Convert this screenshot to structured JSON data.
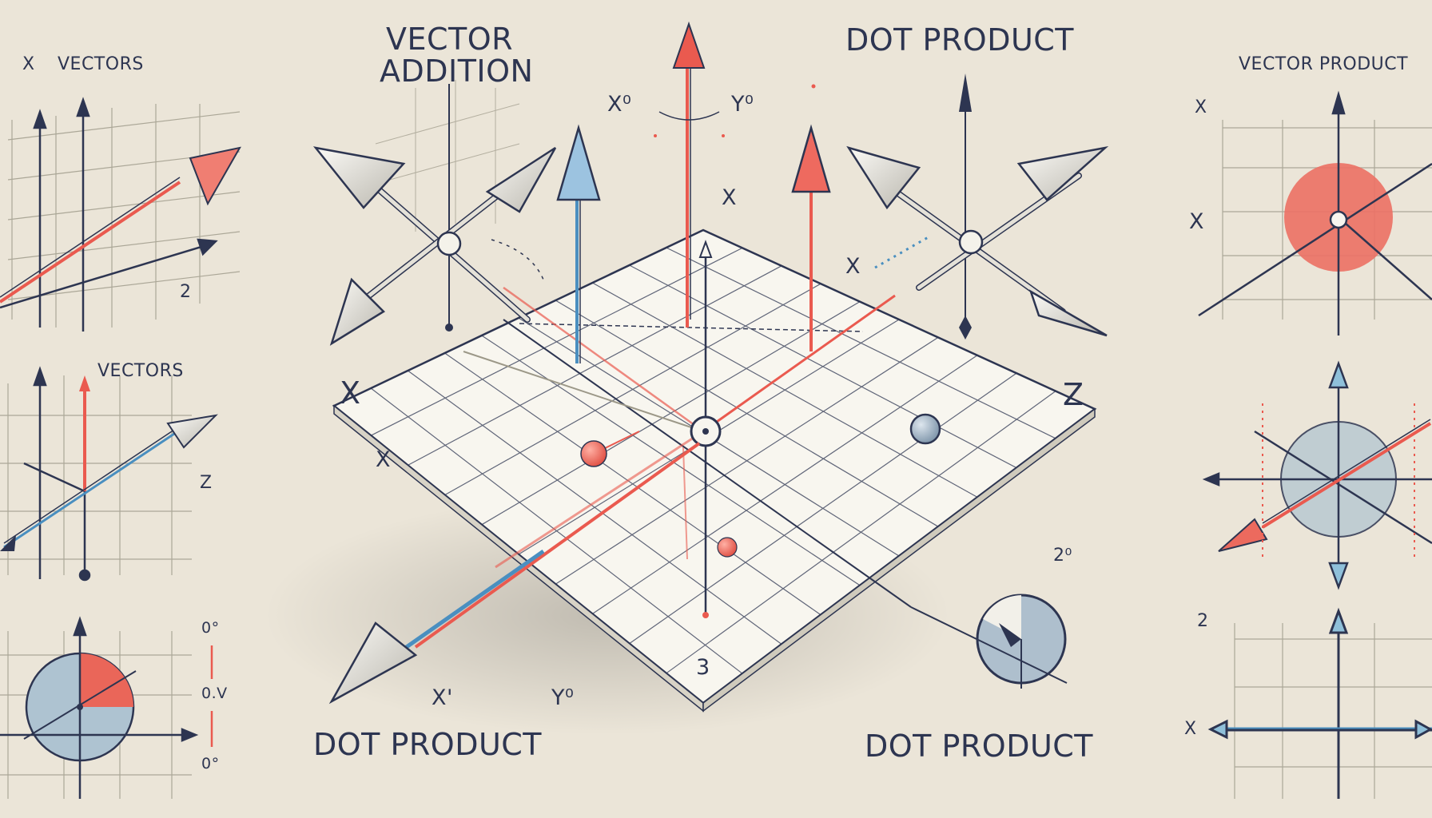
{
  "titles": {
    "vector_addition_line1": "VECTOR",
    "vector_addition_line2": "ADDITION",
    "dot_product_top": "DOT PRODUCT",
    "vector_product": "VECTOR PRODUCT",
    "dot_product_bottom_left": "DOT PRODUCT",
    "dot_product_bottom_right": "DOT PRODUCT"
  },
  "left_panel": {
    "top_label_x": "X",
    "top_label_vectors": "VECTORS",
    "top_tick": "2",
    "mid_label_vectors": "VECTORS",
    "mid_label_z": "Z",
    "side_marks": [
      "0°",
      "0.V",
      "0°"
    ]
  },
  "center": {
    "axis_x_left": "X",
    "axis_z_right": "Z",
    "grid_x": "X",
    "upper_x": "X",
    "right_x": "X",
    "label_x0": "X⁰",
    "label_y0": "Y⁰",
    "bottom_number": "3",
    "bottom_x": "X'",
    "bottom_y": "Y⁰",
    "right_2": "2⁰"
  },
  "right_panel": {
    "top_x": "X",
    "mid_x": "X",
    "lower_2": "2",
    "bottom_x": "X"
  },
  "colors": {
    "background": "#ebe5d8",
    "ink": "#2d3551",
    "red": "#ea5a4f",
    "blue": "#4a8fc0",
    "grid": "#9c9888"
  }
}
